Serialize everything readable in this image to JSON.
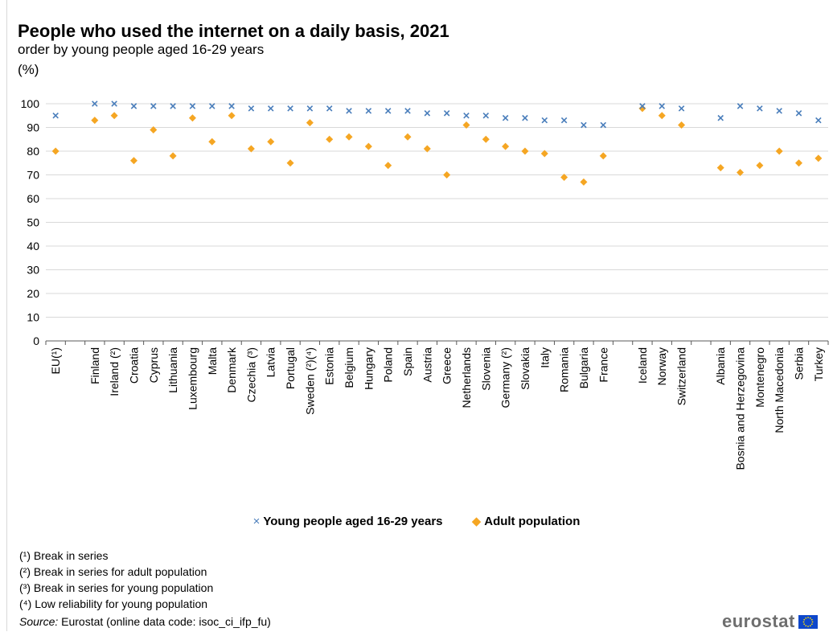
{
  "title": "People who used the internet on a daily basis, 2021",
  "subtitle": "order by young people aged 16-29 years",
  "unit": "(%)",
  "legend": {
    "young": "Young people aged 16-29 years",
    "adult": "Adult population"
  },
  "footnotes": [
    "(¹) Break in series",
    "(²) Break in series for adult population",
    "(³) Break in series for young population",
    "(⁴) Low reliability for young population"
  ],
  "source": {
    "label": "Source:",
    "text": " Eurostat (online data code: isoc_ci_ifp_fu)"
  },
  "logo": {
    "text": "eurostat",
    "flag_color": "#0e47cb",
    "star_color": "#ffdd00"
  },
  "colors": {
    "young": "#4a7ebb",
    "adult": "#f5a623",
    "grid": "#d9d9d9",
    "axis": "#595959"
  },
  "chart_data": {
    "type": "scatter",
    "title": "People who used the internet on a daily basis, 2021",
    "ylabel": "(%)",
    "ylim": [
      0,
      100
    ],
    "yticks": [
      0,
      10,
      20,
      30,
      40,
      50,
      60,
      70,
      80,
      90,
      100
    ],
    "grid": true,
    "legend_position": "bottom",
    "categories": [
      "EU(¹)",
      "",
      "Finland",
      "Ireland (²)",
      "Croatia",
      "Cyprus",
      "Lithuania",
      "Luxembourg",
      "Malta",
      "Denmark",
      "Czechia (³)",
      "Latvia",
      "Portugal",
      "Sweden (²)(⁴)",
      "Estonia",
      "Belgium",
      "Hungary",
      "Poland",
      "Spain",
      "Austria",
      "Greece",
      "Netherlands",
      "Slovenia",
      "Germany (²)",
      "Slovakia",
      "Italy",
      "Romania",
      "Bulgaria",
      "France",
      "",
      "Iceland",
      "Norway",
      "Switzerland",
      "",
      "Albania",
      "Bosnia and Herzegovina",
      "Montenegro",
      "North Macedonia",
      "Serbia",
      "Turkey"
    ],
    "series": [
      {
        "name": "Young people aged 16-29 years",
        "marker": "x",
        "values": [
          95,
          null,
          100,
          100,
          99,
          99,
          99,
          99,
          99,
          99,
          98,
          98,
          98,
          98,
          98,
          97,
          97,
          97,
          97,
          96,
          96,
          95,
          95,
          94,
          94,
          93,
          93,
          91,
          91,
          null,
          99,
          99,
          98,
          null,
          94,
          99,
          98,
          97,
          96,
          93
        ]
      },
      {
        "name": "Adult population",
        "marker": "diamond",
        "values": [
          80,
          null,
          93,
          95,
          76,
          89,
          78,
          94,
          84,
          95,
          81,
          84,
          75,
          92,
          85,
          86,
          82,
          74,
          86,
          81,
          70,
          91,
          85,
          82,
          80,
          79,
          69,
          67,
          78,
          null,
          98,
          95,
          91,
          null,
          73,
          71,
          74,
          80,
          75,
          77
        ]
      }
    ]
  }
}
